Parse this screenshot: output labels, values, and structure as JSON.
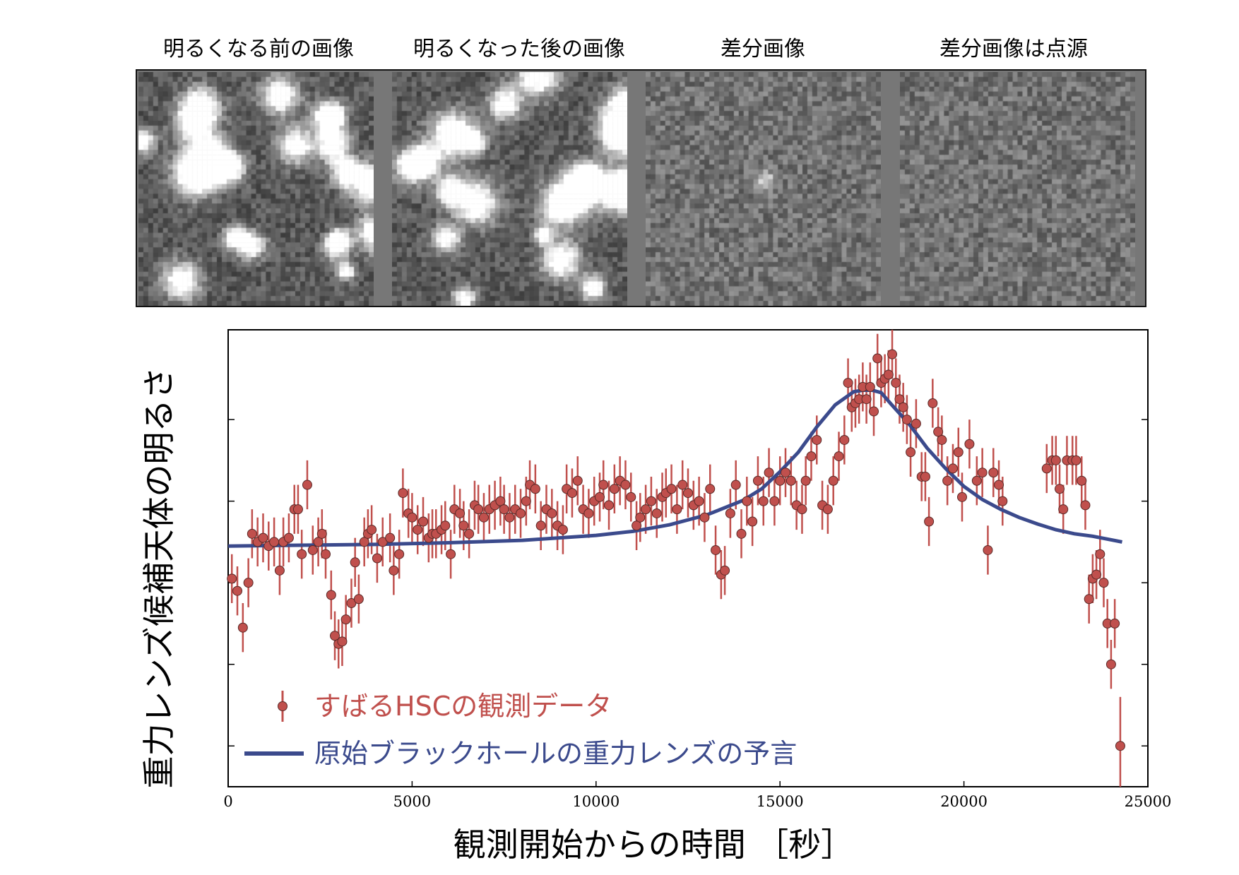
{
  "panels": {
    "titles": [
      "明るくなる前の画像",
      "明るくなった後の画像",
      "差分画像",
      "差分画像は点源"
    ]
  },
  "chart_data": {
    "type": "scatter",
    "xlabel": "観測開始からの時間 ［秒］",
    "ylabel": "重力レンズ候補天体の明るさ",
    "xlim": [
      0,
      25000
    ],
    "xticks": [
      0,
      5000,
      10000,
      15000,
      20000,
      25000
    ],
    "ylim": [
      -0.5,
      5.1
    ],
    "yticks": [
      0,
      1,
      2,
      3,
      4
    ],
    "y_tick_labels_shown": false,
    "grid": false,
    "legend": "bottom-left",
    "series": [
      {
        "name": "すばるHSCの観測データ",
        "kind": "errorbar-points",
        "color": "#c0504d",
        "x": [
          100,
          250,
          400,
          550,
          650,
          800,
          950,
          1100,
          1250,
          1400,
          1500,
          1650,
          1800,
          1900,
          2000,
          2150,
          2300,
          2450,
          2550,
          2650,
          2800,
          2900,
          3000,
          3100,
          3200,
          3350,
          3450,
          3550,
          3700,
          3800,
          3900,
          4050,
          4200,
          4400,
          4500,
          4650,
          4750,
          4900,
          5000,
          5150,
          5300,
          5450,
          5550,
          5650,
          5800,
          5900,
          6050,
          6150,
          6300,
          6400,
          6550,
          6700,
          6800,
          6950,
          7100,
          7250,
          7400,
          7500,
          7650,
          7800,
          7950,
          8100,
          8200,
          8350,
          8500,
          8650,
          8800,
          8950,
          9100,
          9200,
          9350,
          9500,
          9650,
          9800,
          9950,
          10100,
          10200,
          10350,
          10500,
          10650,
          10800,
          10950,
          11100,
          11200,
          11350,
          11500,
          11650,
          11800,
          11900,
          12050,
          12200,
          12350,
          12500,
          12650,
          12800,
          12950,
          13100,
          13250,
          13400,
          13500,
          13650,
          13800,
          13950,
          14100,
          14250,
          14400,
          14550,
          14700,
          14850,
          15000,
          15150,
          15300,
          15450,
          15600,
          15700,
          15850,
          16000,
          16150,
          16300,
          16450,
          16600,
          16750,
          16850,
          16950,
          17050,
          17150,
          17250,
          17350,
          17450,
          17550,
          17650,
          17750,
          17850,
          17950,
          18050,
          18150,
          18250,
          18350,
          18450,
          18550,
          18700,
          18850,
          18950,
          19050,
          19150,
          19300,
          19400,
          19550,
          19700,
          19850,
          19950,
          20150,
          20350,
          20500,
          20650,
          20800,
          20950,
          21050,
          22250,
          22400,
          22500,
          22600,
          22700,
          22800,
          22950,
          23050,
          23200,
          23300,
          23400,
          23500,
          23600,
          23700,
          23800,
          23900,
          24000,
          24100,
          24250
        ],
        "y": [
          2.05,
          1.9,
          1.45,
          2.0,
          2.6,
          2.5,
          2.55,
          2.45,
          2.5,
          2.15,
          2.5,
          2.55,
          2.9,
          2.9,
          2.35,
          3.2,
          2.4,
          2.5,
          2.6,
          2.35,
          1.85,
          1.35,
          1.25,
          1.28,
          1.55,
          1.75,
          2.25,
          1.8,
          2.5,
          2.6,
          2.65,
          2.3,
          2.5,
          2.55,
          2.15,
          2.35,
          3.1,
          2.85,
          2.8,
          2.65,
          2.75,
          2.55,
          2.6,
          2.6,
          2.65,
          2.7,
          2.35,
          2.9,
          2.85,
          2.7,
          2.6,
          2.95,
          2.9,
          2.8,
          2.9,
          2.95,
          3.0,
          2.9,
          2.8,
          2.9,
          2.85,
          3.0,
          3.2,
          3.15,
          2.7,
          2.9,
          2.85,
          2.7,
          2.65,
          3.15,
          3.1,
          3.25,
          2.9,
          2.85,
          3.0,
          3.05,
          3.2,
          2.95,
          3.15,
          3.25,
          3.2,
          3.05,
          2.7,
          2.8,
          2.9,
          3.0,
          2.85,
          3.05,
          3.1,
          3.15,
          2.9,
          3.2,
          3.1,
          2.95,
          3.0,
          2.8,
          3.15,
          2.4,
          2.1,
          2.15,
          2.85,
          3.2,
          2.6,
          3.0,
          2.75,
          3.25,
          3.0,
          3.35,
          3.0,
          3.25,
          3.35,
          3.25,
          2.95,
          2.9,
          3.25,
          3.55,
          3.75,
          2.95,
          2.9,
          3.25,
          3.55,
          3.75,
          4.45,
          4.15,
          4.2,
          4.25,
          4.4,
          4.25,
          4.4,
          4.1,
          4.75,
          4.45,
          4.5,
          4.55,
          4.8,
          4.45,
          4.25,
          4.15,
          4.0,
          3.6,
          3.95,
          3.3,
          3.3,
          2.75,
          4.2,
          3.85,
          3.75,
          3.25,
          3.4,
          3.6,
          3.05,
          3.7,
          3.25,
          3.35,
          2.4,
          3.35,
          3.2,
          3.0,
          3.4,
          3.5,
          3.5,
          3.15,
          2.9,
          3.5,
          3.5,
          3.5,
          3.25,
          2.95,
          1.8,
          2.05,
          2.1,
          2.35,
          2.0,
          1.5,
          1.0,
          1.5,
          0.0
        ]
      },
      {
        "name": "原始ブラックホールの重力レンズの予言",
        "kind": "line",
        "color": "#3b4a8c",
        "x": [
          0,
          2000,
          4000,
          6000,
          8000,
          10000,
          11000,
          12000,
          13000,
          14000,
          14500,
          15000,
          15500,
          16000,
          16500,
          17000,
          17250,
          17500,
          17750,
          18000,
          18500,
          19000,
          19500,
          20000,
          20500,
          21000,
          21500,
          22000,
          22500,
          23000,
          23500,
          24300
        ],
        "y": [
          2.45,
          2.46,
          2.47,
          2.49,
          2.52,
          2.58,
          2.63,
          2.71,
          2.83,
          3.01,
          3.15,
          3.36,
          3.6,
          3.91,
          4.18,
          4.34,
          4.36,
          4.36,
          4.33,
          4.2,
          3.95,
          3.65,
          3.4,
          3.18,
          3.02,
          2.9,
          2.8,
          2.72,
          2.65,
          2.6,
          2.57,
          2.5
        ]
      }
    ]
  }
}
